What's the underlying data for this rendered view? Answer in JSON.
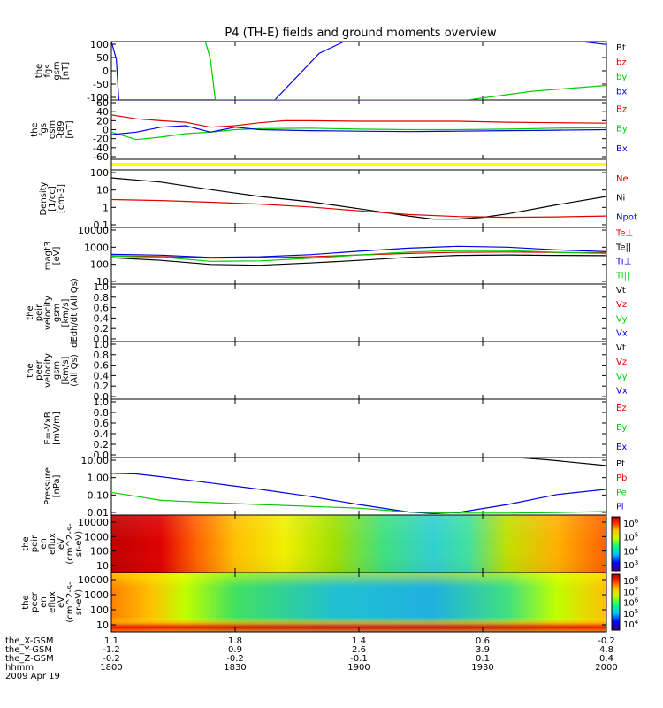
{
  "title": "P4 (TH-E) fields and ground moments overview",
  "colors": {
    "black": "#000000",
    "red": "#e00000",
    "green": "#00cc00",
    "blue": "#0000e0",
    "yellow": "#ffff00"
  },
  "panels": [
    {
      "id": "fgs-gsm",
      "ylabel": [
        "the",
        "fgs",
        "gsm",
        "[nT]"
      ],
      "yticks": [
        "100",
        "50",
        "0",
        "-50",
        "-100"
      ],
      "legend": [
        {
          "text": "Bt",
          "color": "#000000"
        },
        {
          "text": "bz",
          "color": "#e00000"
        },
        {
          "text": "by",
          "color": "#00cc00"
        },
        {
          "text": "bx",
          "color": "#0000e0"
        }
      ]
    },
    {
      "id": "fgs-gsm-dip",
      "ylabel": [
        "the",
        "fgs",
        "gsm",
        "-t89",
        "[nT]"
      ],
      "yticks": [
        "60",
        "40",
        "20",
        "0",
        "-20",
        "-40",
        "-60"
      ],
      "legend": [
        {
          "text": "Bz",
          "color": "#e00000"
        },
        {
          "text": "By",
          "color": "#00cc00"
        },
        {
          "text": "Bx",
          "color": "#0000e0"
        }
      ]
    },
    {
      "id": "flag-bar",
      "ylabel": [],
      "yticks": [],
      "legend": []
    },
    {
      "id": "density",
      "ylabel": [
        "Density",
        "[1/cc]",
        "[cm-3]"
      ],
      "yticks": [
        "100",
        "10",
        "1",
        "0.1"
      ],
      "legend": [
        {
          "text": "Ne",
          "color": "#e00000"
        },
        {
          "text": "Ni",
          "color": "#000000"
        },
        {
          "text": "Npot",
          "color": "#0000e0"
        }
      ]
    },
    {
      "id": "temperature",
      "ylabel": [
        "magt3",
        "[eV]"
      ],
      "yticks": [
        "10000",
        "1000",
        "100",
        "10"
      ],
      "legend": [
        {
          "text": "Te⊥",
          "color": "#e00000"
        },
        {
          "text": "Te||",
          "color": "#000000"
        },
        {
          "text": "Ti⊥",
          "color": "#0000e0"
        },
        {
          "text": "Ti||",
          "color": "#00cc00"
        }
      ]
    },
    {
      "id": "peir-velocity",
      "ylabel": [
        "the",
        "peir",
        "velocity",
        "gsm",
        "[km/s]",
        "dEdh/dt (All Qs)"
      ],
      "yticks": [
        "1.0",
        "0.8",
        "0.6",
        "0.4",
        "0.2",
        "0.0"
      ],
      "legend": [
        {
          "text": "Vt",
          "color": "#000000"
        },
        {
          "text": "Vz",
          "color": "#e00000"
        },
        {
          "text": "Vy",
          "color": "#00cc00"
        },
        {
          "text": "Vx",
          "color": "#0000e0"
        }
      ]
    },
    {
      "id": "peer-velocity",
      "ylabel": [
        "the",
        "peer",
        "velocity",
        "gsm",
        "[km/s]",
        "(All Qs)"
      ],
      "yticks": [
        "1.0",
        "0.8",
        "0.6",
        "0.4",
        "0.2",
        "0.0"
      ],
      "legend": [
        {
          "text": "Vt",
          "color": "#000000"
        },
        {
          "text": "Vz",
          "color": "#e00000"
        },
        {
          "text": "Vy",
          "color": "#00cc00"
        },
        {
          "text": "Vx",
          "color": "#0000e0"
        }
      ]
    },
    {
      "id": "e-field",
      "ylabel": [
        "E=-VxB",
        "[mV/m]"
      ],
      "yticks": [
        "1.0",
        "0.8",
        "0.6",
        "0.4",
        "0.2",
        "0.0"
      ],
      "legend": [
        {
          "text": "Ez",
          "color": "#e00000"
        },
        {
          "text": "Ey",
          "color": "#00cc00"
        },
        {
          "text": "Ex",
          "color": "#0000e0"
        }
      ]
    },
    {
      "id": "pressure",
      "ylabel": [
        "Pressure",
        "[nPa]"
      ],
      "yticks": [
        "10.00",
        "1.00",
        "0.10",
        "0.01"
      ],
      "legend": [
        {
          "text": "Pt",
          "color": "#000000"
        },
        {
          "text": "Pb",
          "color": "#e00000"
        },
        {
          "text": "Pe",
          "color": "#00cc00"
        },
        {
          "text": "Pi",
          "color": "#0000e0"
        }
      ]
    },
    {
      "id": "peir-spectrogram",
      "ylabel": [
        "the",
        "peir",
        "en",
        "eflux",
        "eV",
        "(cm^2-s-",
        "sr-eV)"
      ],
      "yticks": [
        "10000",
        "1000",
        "100",
        "10"
      ],
      "colorbar": [
        "10^6",
        "10^5",
        "10^4",
        "10^3"
      ],
      "legend": []
    },
    {
      "id": "peer-spectrogram",
      "ylabel": [
        "the",
        "peer",
        "en",
        "eflux",
        "eV",
        "(cm^2-s-",
        "sr-eV)"
      ],
      "yticks": [
        "10000",
        "1000",
        "100",
        "10"
      ],
      "colorbar": [
        "10^8",
        "10^7",
        "10^6",
        "10^5",
        "10^4"
      ],
      "legend": []
    }
  ],
  "footer": {
    "rows": [
      {
        "label": "the_X-GSM",
        "values": [
          "1.1",
          "1.8",
          "1.4",
          "0.6",
          "-0.2"
        ]
      },
      {
        "label": "the_Y-GSM",
        "values": [
          "-1.2",
          "0.9",
          "2.6",
          "3.9",
          "4.8"
        ]
      },
      {
        "label": "the_Z-GSM",
        "values": [
          "-0.2",
          "-0.2",
          "-0.1",
          "0.1",
          "0.4"
        ]
      },
      {
        "label": "hhmm",
        "values": [
          "1800",
          "1830",
          "1900",
          "1930",
          "2000"
        ]
      }
    ],
    "date": "2009 Apr 19"
  },
  "chart_data": [
    {
      "type": "line",
      "panel": "fgs-gsm",
      "ylim": [
        -100,
        100
      ],
      "x": [
        "1800",
        "1830",
        "1900",
        "1930",
        "2000"
      ],
      "series": [
        {
          "name": "bx",
          "points": [
            [
              0,
              100
            ],
            [
              0.01,
              40
            ],
            [
              0.015,
              -100
            ],
            [
              0.33,
              -100
            ],
            [
              0.42,
              60
            ],
            [
              0.47,
              100
            ],
            [
              0.95,
              100
            ],
            [
              1.0,
              90
            ]
          ]
        },
        {
          "name": "by",
          "points": [
            [
              0.19,
              100
            ],
            [
              0.2,
              40
            ],
            [
              0.21,
              -100
            ],
            [
              0.72,
              -100
            ],
            [
              0.85,
              -70
            ],
            [
              1.0,
              -50
            ]
          ]
        }
      ]
    },
    {
      "type": "line",
      "panel": "fgs-gsm-dip",
      "ylim": [
        -60,
        60
      ],
      "series": [
        {
          "name": "Bz",
          "points": [
            [
              0,
              30
            ],
            [
              0.05,
              22
            ],
            [
              0.1,
              18
            ],
            [
              0.15,
              15
            ],
            [
              0.2,
              5
            ],
            [
              0.25,
              8
            ],
            [
              0.3,
              14
            ],
            [
              0.35,
              18
            ],
            [
              0.4,
              18
            ],
            [
              0.5,
              17
            ],
            [
              0.6,
              17
            ],
            [
              0.7,
              17
            ],
            [
              0.8,
              15
            ],
            [
              0.9,
              14
            ],
            [
              1.0,
              13
            ]
          ]
        },
        {
          "name": "By",
          "points": [
            [
              0,
              -5
            ],
            [
              0.05,
              -20
            ],
            [
              0.1,
              -15
            ],
            [
              0.15,
              -8
            ],
            [
              0.2,
              -5
            ],
            [
              0.25,
              0
            ],
            [
              0.3,
              2
            ],
            [
              0.4,
              3
            ],
            [
              0.5,
              1
            ],
            [
              0.6,
              0
            ],
            [
              0.7,
              0
            ],
            [
              0.8,
              1
            ],
            [
              0.9,
              3
            ],
            [
              1.0,
              4
            ]
          ]
        },
        {
          "name": "Bx",
          "points": [
            [
              0,
              -10
            ],
            [
              0.05,
              -5
            ],
            [
              0.1,
              5
            ],
            [
              0.15,
              8
            ],
            [
              0.2,
              -5
            ],
            [
              0.25,
              5
            ],
            [
              0.3,
              0
            ],
            [
              0.4,
              -2
            ],
            [
              0.5,
              -3
            ],
            [
              0.6,
              -4
            ],
            [
              0.7,
              -3
            ],
            [
              0.8,
              -2
            ],
            [
              0.9,
              -1
            ],
            [
              1.0,
              0
            ]
          ]
        }
      ]
    },
    {
      "type": "line",
      "panel": "density",
      "yscale": "log",
      "ylim": [
        0.1,
        200
      ],
      "series": [
        {
          "name": "Ni",
          "points": [
            [
              0,
              70
            ],
            [
              0.1,
              40
            ],
            [
              0.2,
              15
            ],
            [
              0.3,
              6
            ],
            [
              0.4,
              3
            ],
            [
              0.5,
              1.2
            ],
            [
              0.6,
              0.45
            ],
            [
              0.65,
              0.3
            ],
            [
              0.7,
              0.3
            ],
            [
              0.75,
              0.38
            ],
            [
              0.8,
              0.6
            ],
            [
              0.9,
              2
            ],
            [
              1.0,
              6
            ]
          ]
        },
        {
          "name": "Ne",
          "points": [
            [
              0,
              4
            ],
            [
              0.1,
              3.5
            ],
            [
              0.2,
              2.8
            ],
            [
              0.3,
              2.2
            ],
            [
              0.4,
              1.5
            ],
            [
              0.5,
              0.9
            ],
            [
              0.6,
              0.55
            ],
            [
              0.7,
              0.42
            ],
            [
              0.75,
              0.4
            ],
            [
              0.8,
              0.38
            ],
            [
              0.9,
              0.4
            ],
            [
              1.0,
              0.45
            ]
          ]
        }
      ]
    },
    {
      "type": "line",
      "panel": "temperature",
      "yscale": "log",
      "ylim": [
        10,
        10000
      ],
      "series": [
        {
          "name": "Te||",
          "points": [
            [
              0,
              250
            ],
            [
              0.1,
              180
            ],
            [
              0.2,
              110
            ],
            [
              0.3,
              100
            ],
            [
              0.4,
              130
            ],
            [
              0.5,
              180
            ],
            [
              0.6,
              260
            ],
            [
              0.7,
              330
            ],
            [
              0.8,
              350
            ],
            [
              0.9,
              330
            ],
            [
              1.0,
              320
            ]
          ]
        },
        {
          "name": "Te⊥",
          "points": [
            [
              0,
              320
            ],
            [
              0.1,
              290
            ],
            [
              0.2,
              240
            ],
            [
              0.3,
              250
            ],
            [
              0.4,
              280
            ],
            [
              0.5,
              350
            ],
            [
              0.6,
              420
            ],
            [
              0.7,
              480
            ],
            [
              0.8,
              500
            ],
            [
              0.9,
              470
            ],
            [
              1.0,
              450
            ]
          ]
        },
        {
          "name": "Ti||",
          "points": [
            [
              0,
              300
            ],
            [
              0.1,
              270
            ],
            [
              0.2,
              160
            ],
            [
              0.3,
              170
            ],
            [
              0.4,
              230
            ],
            [
              0.5,
              350
            ],
            [
              0.6,
              500
            ],
            [
              0.7,
              600
            ],
            [
              0.8,
              600
            ],
            [
              0.9,
              480
            ],
            [
              1.0,
              420
            ]
          ]
        },
        {
          "name": "Ti⊥",
          "points": [
            [
              0,
              380
            ],
            [
              0.1,
              340
            ],
            [
              0.2,
              260
            ],
            [
              0.3,
              280
            ],
            [
              0.4,
              360
            ],
            [
              0.5,
              550
            ],
            [
              0.6,
              800
            ],
            [
              0.7,
              1000
            ],
            [
              0.8,
              900
            ],
            [
              0.9,
              650
            ],
            [
              1.0,
              520
            ]
          ]
        }
      ]
    },
    {
      "type": "line",
      "panel": "pressure",
      "yscale": "log",
      "ylim": [
        0.01,
        20
      ],
      "series": [
        {
          "name": "Pi",
          "points": [
            [
              0,
              2.5
            ],
            [
              0.05,
              2.3
            ],
            [
              0.1,
              1.6
            ],
            [
              0.2,
              0.7
            ],
            [
              0.3,
              0.3
            ],
            [
              0.4,
              0.12
            ],
            [
              0.5,
              0.04
            ],
            [
              0.6,
              0.015
            ],
            [
              0.65,
              0.012
            ],
            [
              0.7,
              0.014
            ],
            [
              0.8,
              0.04
            ],
            [
              0.9,
              0.15
            ],
            [
              1.0,
              0.3
            ]
          ]
        },
        {
          "name": "Pe",
          "points": [
            [
              0,
              0.2
            ],
            [
              0.05,
              0.12
            ],
            [
              0.1,
              0.07
            ],
            [
              0.15,
              0.06
            ],
            [
              0.3,
              0.04
            ],
            [
              0.5,
              0.025
            ],
            [
              0.6,
              0.015
            ],
            [
              0.7,
              0.013
            ],
            [
              0.8,
              0.013
            ],
            [
              0.9,
              0.014
            ],
            [
              1.0,
              0.016
            ]
          ]
        },
        {
          "name": "Pt",
          "points": [
            [
              0.82,
              20
            ],
            [
              0.88,
              15
            ],
            [
              1.0,
              7
            ]
          ]
        }
      ]
    },
    {
      "type": "heatmap",
      "panel": "peir-spectrogram",
      "yscale": "log",
      "ylim": [
        10,
        20000
      ]
    },
    {
      "type": "heatmap",
      "panel": "peer-spectrogram",
      "yscale": "log",
      "ylim": [
        7,
        20000
      ]
    }
  ]
}
